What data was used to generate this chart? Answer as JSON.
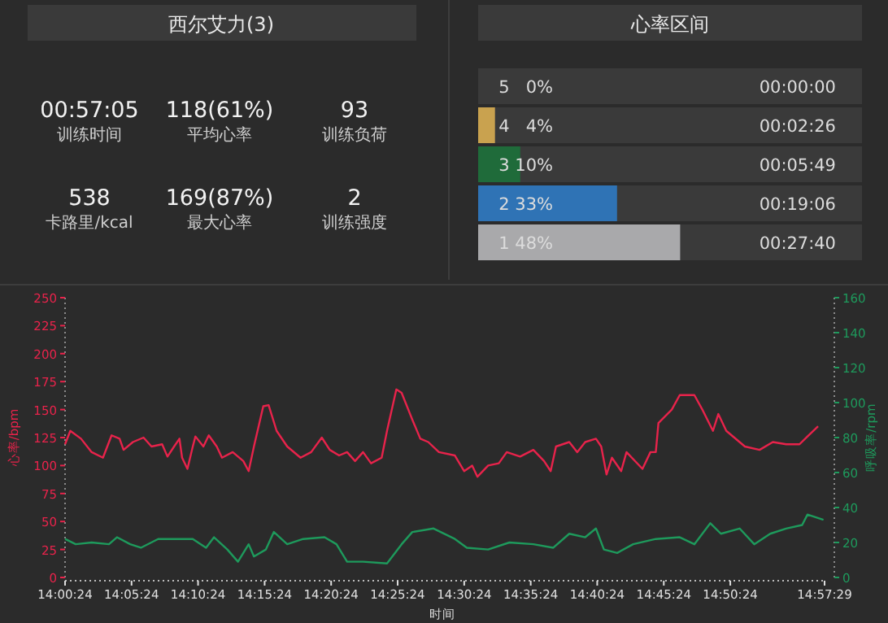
{
  "chart_data": [
    {
      "type": "other",
      "title": "西尔艾力(3)",
      "annotations": [
        "00:57:05",
        "训练时间",
        "118(61%)",
        "平均心率",
        "93",
        "训练负荷",
        "538",
        "卡路里/kcal",
        "169(87%)",
        "最大心率",
        "2",
        "训练强度"
      ]
    },
    {
      "type": "bar",
      "orientation": "horizontal",
      "title": "心率区间",
      "categories": [
        "5",
        "4",
        "3",
        "2",
        "1"
      ],
      "values": [
        0,
        4,
        10,
        33,
        48
      ],
      "colors": [
        "#c0392b",
        "#c9a24f",
        "#1f6b3a",
        "#2f73b5",
        "#a9a9ab"
      ],
      "value_labels": [
        "0%",
        "4%",
        "10%",
        "33%",
        "48%"
      ],
      "annotations": [
        "00:00:00",
        "00:02:26",
        "00:05:49",
        "00:19:06",
        "00:27:40"
      ]
    },
    {
      "type": "line",
      "xlabel": "时间",
      "ylabel": "心率/bpm",
      "y2label": "呼吸率/rpm",
      "grid": false,
      "xlim": [
        14.0067,
        14.9581
      ],
      "xticks": [
        {
          "value": 14.0067,
          "label": "14:00:24"
        },
        {
          "value": 14.09,
          "label": "14:05:24"
        },
        {
          "value": 14.1733,
          "label": "14:10:24"
        },
        {
          "value": 14.2567,
          "label": "14:15:24"
        },
        {
          "value": 14.34,
          "label": "14:20:24"
        },
        {
          "value": 14.4233,
          "label": "14:25:24"
        },
        {
          "value": 14.5067,
          "label": "14:30:24"
        },
        {
          "value": 14.59,
          "label": "14:35:24"
        },
        {
          "value": 14.6733,
          "label": "14:40:24"
        },
        {
          "value": 14.7567,
          "label": "14:45:24"
        },
        {
          "value": 14.84,
          "label": "14:50:24"
        },
        {
          "value": 14.9581,
          "label": "14:57:29"
        }
      ],
      "ylim": [
        0,
        250
      ],
      "yticks": [
        0,
        25,
        50,
        75,
        100,
        125,
        150,
        175,
        200,
        225,
        250
      ],
      "y2lim": [
        0,
        160
      ],
      "y2ticks": [
        0,
        20,
        40,
        60,
        80,
        100,
        120,
        140,
        160
      ],
      "series": [
        {
          "color": "#e8234b",
          "x": [
            14.0067,
            14.0133,
            14.0267,
            14.04,
            14.0542,
            14.065,
            14.075,
            14.08,
            14.0917,
            14.105,
            14.115,
            14.1283,
            14.135,
            14.1433,
            14.15,
            14.1533,
            14.16,
            14.1667,
            14.17,
            14.18,
            14.1867,
            14.1967,
            14.2033,
            14.2167,
            14.23,
            14.2367,
            14.2433,
            14.255,
            14.2617,
            14.2717,
            14.285,
            14.3017,
            14.315,
            14.3283,
            14.3383,
            14.35,
            14.36,
            14.37,
            14.38,
            14.39,
            14.4033,
            14.41,
            14.4217,
            14.4283,
            14.4417,
            14.4517,
            14.4617,
            14.475,
            14.495,
            14.5067,
            14.5167,
            14.5233,
            14.5367,
            14.55,
            14.56,
            14.5767,
            14.5933,
            14.6067,
            14.615,
            14.6217,
            14.6383,
            14.6483,
            14.6583,
            14.6717,
            14.6783,
            14.685,
            14.6917,
            14.7033,
            14.71,
            14.73,
            14.74,
            14.7467,
            14.75,
            14.7667,
            14.7767,
            14.795,
            14.805,
            14.8183,
            14.825,
            14.835,
            14.8583,
            14.8767,
            14.8933,
            14.91,
            14.9267,
            14.9367,
            14.95
          ],
          "values": [
            119,
            131,
            124,
            112,
            107,
            127,
            124,
            114,
            121,
            125,
            117,
            119,
            108,
            117,
            124,
            107,
            97,
            117,
            126,
            117,
            127,
            117,
            107,
            112,
            104,
            95,
            117,
            153,
            154,
            131,
            117,
            107,
            112,
            125,
            114,
            109,
            112,
            104,
            112,
            102,
            107,
            131,
            168,
            165,
            141,
            124,
            121,
            112,
            109,
            95,
            100,
            90,
            100,
            102,
            112,
            108,
            114,
            104,
            95,
            117,
            121,
            112,
            121,
            124,
            117,
            92,
            107,
            95,
            112,
            97,
            112,
            112,
            138,
            150,
            163,
            163,
            150,
            131,
            146,
            131,
            117,
            114,
            121,
            119,
            119,
            126,
            135
          ]
        },
        {
          "color": "#1e9a5c",
          "axis": "y2",
          "x": [
            14.0067,
            14.02,
            14.04,
            14.0617,
            14.0717,
            14.0883,
            14.1017,
            14.1233,
            14.1433,
            14.1667,
            14.1833,
            14.1933,
            14.21,
            14.2233,
            14.2367,
            14.2433,
            14.2583,
            14.2683,
            14.285,
            14.305,
            14.3317,
            14.3467,
            14.36,
            14.38,
            14.41,
            14.4283,
            14.4417,
            14.4683,
            14.495,
            14.51,
            14.5367,
            14.5633,
            14.5933,
            14.6183,
            14.6383,
            14.6583,
            14.6717,
            14.6817,
            14.6983,
            14.7183,
            14.7467,
            14.7767,
            14.795,
            14.815,
            14.8283,
            14.8517,
            14.87,
            14.89,
            14.91,
            14.93,
            14.9367,
            14.9567
          ],
          "values": [
            22,
            19,
            20,
            19,
            23,
            19,
            17,
            22,
            22,
            22,
            17,
            23,
            16,
            9,
            19,
            12,
            16,
            26,
            19,
            22,
            23,
            19,
            9,
            9,
            8,
            19,
            26,
            28,
            22,
            17,
            16,
            20,
            19,
            17,
            25,
            23,
            28,
            16,
            14,
            19,
            22,
            23,
            19,
            31,
            25,
            28,
            19,
            25,
            28,
            30,
            36,
            33
          ]
        }
      ]
    }
  ]
}
